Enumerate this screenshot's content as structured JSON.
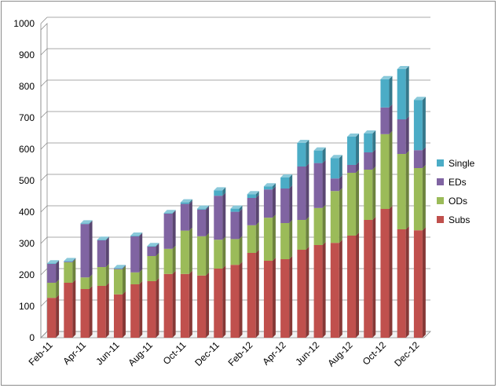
{
  "chart_data": {
    "type": "bar",
    "stacked": true,
    "three_d": true,
    "title": "",
    "xlabel": "",
    "ylabel": "",
    "ylim": [
      0,
      1000
    ],
    "yticks": [
      0,
      100,
      200,
      300,
      400,
      500,
      600,
      700,
      800,
      900,
      1000
    ],
    "grid": true,
    "legend_position": "right",
    "categories": [
      "Feb-11",
      "Mar-11",
      "Apr-11",
      "May-11",
      "Jun-11",
      "Jul-11",
      "Aug-11",
      "Sep-11",
      "Oct-11",
      "Nov-11",
      "Dec-11",
      "Jan-12",
      "Feb-12",
      "Mar-12",
      "Apr-12",
      "May-12",
      "Jun-12",
      "Jul-12",
      "Aug-12",
      "Sep-12",
      "Oct-12",
      "Nov-12",
      "Dec-12"
    ],
    "tick_labels": [
      "Feb-11",
      "",
      "Apr-11",
      "",
      "Jun-11",
      "",
      "Aug-11",
      "",
      "Oct-11",
      "",
      "Dec-11",
      "",
      "Feb-12",
      "",
      "Apr-12",
      "",
      "Jun-12",
      "",
      "Aug-12",
      "",
      "Oct-12",
      "",
      "Dec-12"
    ],
    "series": [
      {
        "name": "Subs",
        "color": "#c0504d",
        "values": [
          127,
          175,
          155,
          165,
          138,
          170,
          180,
          203,
          203,
          198,
          220,
          232,
          270,
          245,
          250,
          280,
          295,
          302,
          325,
          375,
          410,
          345,
          342
        ]
      },
      {
        "name": "ODs",
        "color": "#9bbb59",
        "values": [
          48,
          65,
          37,
          60,
          80,
          38,
          80,
          80,
          138,
          125,
          92,
          82,
          88,
          137,
          115,
          95,
          118,
          165,
          200,
          160,
          238,
          240,
          198
        ]
      },
      {
        "name": "EDs",
        "color": "#8064a2",
        "values": [
          60,
          2,
          170,
          85,
          2,
          115,
          30,
          112,
          85,
          85,
          140,
          87,
          87,
          90,
          110,
          170,
          143,
          40,
          25,
          55,
          85,
          110,
          57
        ]
      },
      {
        "name": "Single",
        "color": "#4bacc6",
        "values": [
          2,
          2,
          2,
          2,
          2,
          2,
          2,
          2,
          5,
          3,
          17,
          10,
          12,
          10,
          35,
          75,
          40,
          65,
          90,
          60,
          90,
          160,
          160
        ]
      }
    ]
  }
}
